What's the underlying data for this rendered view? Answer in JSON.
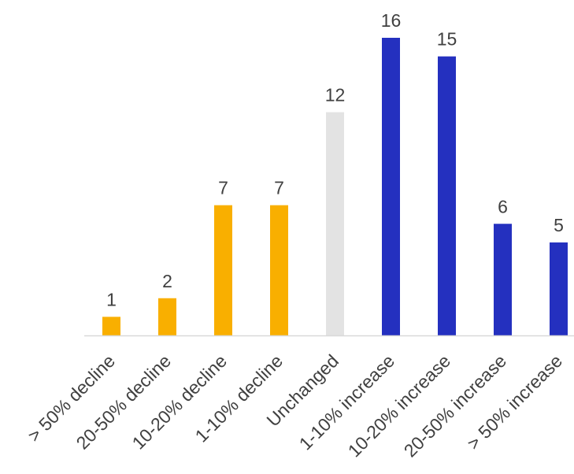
{
  "chart_data": {
    "type": "bar",
    "title": "",
    "xlabel": "",
    "ylabel": "",
    "categories": [
      "> 50% decline",
      "20-50% decline",
      "10-20% decline",
      "1-10% decline",
      "Unchanged",
      "1-10% increase",
      "10-20% increase",
      "20-50% increase",
      "> 50% increase"
    ],
    "values": [
      1,
      2,
      7,
      7,
      12,
      16,
      15,
      6,
      5
    ],
    "ylim": [
      0,
      16
    ],
    "grid": false,
    "legend": "none",
    "bar_colors": [
      "#F9AF00",
      "#F9AF00",
      "#F9AF00",
      "#F9AF00",
      "#E3E3E3",
      "#2430BF",
      "#2430BF",
      "#2430BF",
      "#2430BF"
    ],
    "axis_color": "#D9D9D9",
    "text_color": "#404040"
  }
}
